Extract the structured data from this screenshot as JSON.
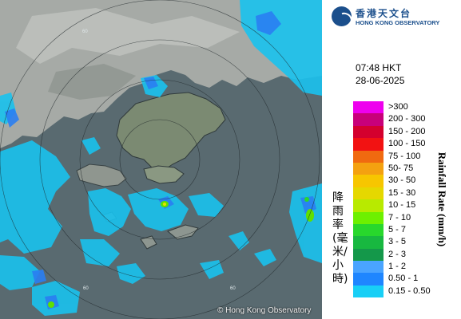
{
  "header": {
    "logo_cn": "香港天文台",
    "logo_en": "HONG KONG OBSERVATORY"
  },
  "timestamp": {
    "time": "07:48 HKT",
    "date": "28-06-2025"
  },
  "legend": {
    "title_en": "Rainfall Rate (mm/h)",
    "title_cn": "降雨率(毫米/小時)",
    "items": [
      {
        "label": ">300",
        "color": "#ee00ee"
      },
      {
        "label": "200 - 300",
        "color": "#c8007a"
      },
      {
        "label": "150 - 200",
        "color": "#d4002e"
      },
      {
        "label": "100 - 150",
        "color": "#f21212"
      },
      {
        "label": "75 - 100",
        "color": "#f06a10"
      },
      {
        "label": "50- 75",
        "color": "#f4a110"
      },
      {
        "label": "30 - 50",
        "color": "#f7c600"
      },
      {
        "label": "15 - 30",
        "color": "#e5d800"
      },
      {
        "label": "10 - 15",
        "color": "#b8ea00"
      },
      {
        "label": "7 - 10",
        "color": "#6df000"
      },
      {
        "label": "5 - 7",
        "color": "#28d82c"
      },
      {
        "label": "3 - 5",
        "color": "#18b840"
      },
      {
        "label": "2 - 3",
        "color": "#14984a"
      },
      {
        "label": "1 - 2",
        "color": "#4aa4ff"
      },
      {
        "label": "0.50 - 1",
        "color": "#1f86ff"
      },
      {
        "label": "0.15 - 0.50",
        "color": "#18cff6"
      }
    ]
  },
  "map": {
    "credit": "© Hong Kong Observatory",
    "ring_label": "60"
  }
}
